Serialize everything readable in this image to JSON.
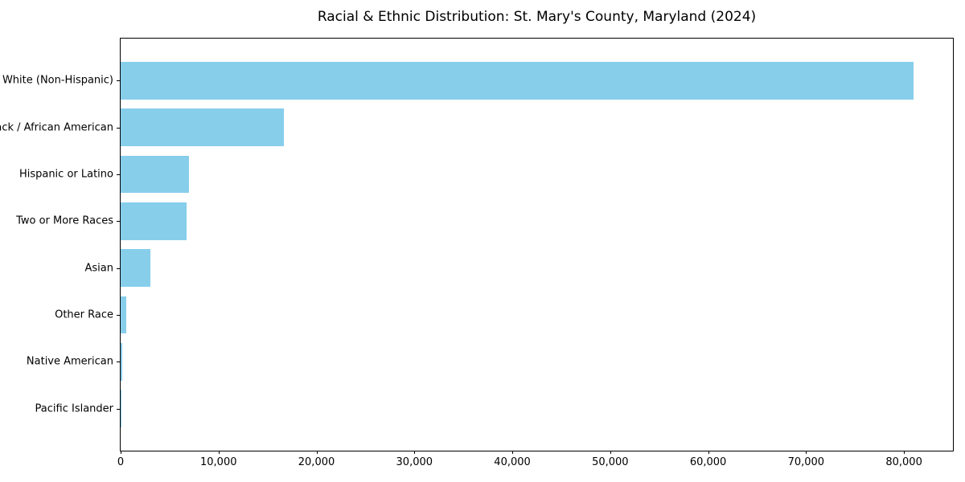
{
  "chart_data": {
    "type": "bar",
    "orientation": "horizontal",
    "title": "Racial & Ethnic Distribution: St. Mary's County, Maryland (2024)",
    "categories": [
      "White (Non-Hispanic)",
      "Black / African American",
      "Hispanic or Latino",
      "Two or More Races",
      "Asian",
      "Other Race",
      "Native American",
      "Pacific Islander"
    ],
    "values": [
      81000,
      16700,
      7000,
      6700,
      3000,
      570,
      150,
      60
    ],
    "xlabel": "",
    "ylabel": "",
    "xlim": [
      0,
      85000
    ],
    "xticks": [
      {
        "value": 0,
        "label": "0"
      },
      {
        "value": 10000,
        "label": "10,000"
      },
      {
        "value": 20000,
        "label": "20,000"
      },
      {
        "value": 30000,
        "label": "30,000"
      },
      {
        "value": 40000,
        "label": "40,000"
      },
      {
        "value": 50000,
        "label": "50,000"
      },
      {
        "value": 60000,
        "label": "60,000"
      },
      {
        "value": 70000,
        "label": "70,000"
      },
      {
        "value": 80000,
        "label": "80,000"
      }
    ],
    "bar_color": "#87CEEB",
    "grid": false,
    "legend": null
  }
}
